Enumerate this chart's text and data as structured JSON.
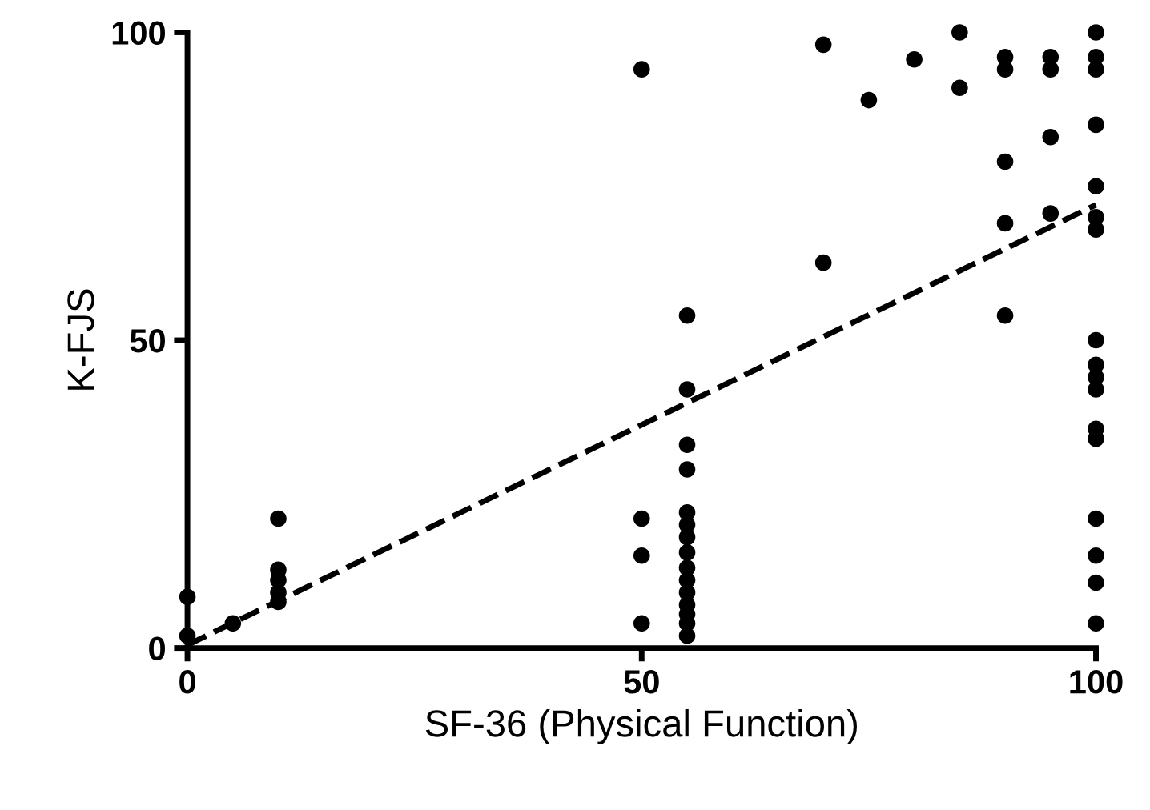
{
  "chart_data": {
    "type": "scatter",
    "xlabel": "SF-36 (Physical Function)",
    "ylabel": "K-FJS",
    "xlim": [
      0,
      100
    ],
    "ylim": [
      0,
      100
    ],
    "xticks": [
      0,
      50,
      100
    ],
    "yticks": [
      0,
      50,
      100
    ],
    "grid": false,
    "legend": false,
    "series": [
      {
        "color": "#000000",
        "marker": "circle",
        "x": [
          0,
          0,
          5,
          10,
          10,
          10,
          10,
          10,
          50,
          50,
          50,
          50,
          55,
          55,
          55,
          55,
          55,
          55,
          55,
          55,
          55,
          55,
          55,
          55,
          55,
          55,
          55,
          70,
          70,
          75,
          80,
          85,
          85,
          90,
          90,
          90,
          90,
          90,
          95,
          95,
          95,
          95,
          100,
          100,
          100,
          100,
          100,
          100,
          100,
          100,
          100,
          100,
          100,
          100,
          100,
          100,
          100,
          100,
          100
        ],
        "values": [
          8.3,
          2,
          4,
          21,
          12.7,
          11,
          9,
          7.5,
          94,
          21,
          15,
          4,
          54,
          42,
          33,
          29,
          22,
          20,
          18,
          15.5,
          13,
          11,
          9,
          7,
          5.5,
          4,
          2,
          98,
          62.6,
          89,
          95.6,
          100,
          91,
          96,
          94,
          79,
          69,
          54,
          96,
          94,
          83,
          70.6,
          100,
          96,
          94,
          85,
          75,
          70,
          68,
          50,
          46,
          44,
          42,
          35.6,
          34,
          21,
          15,
          10.6,
          4
        ]
      },
      {
        "type": "line",
        "color": "#000000",
        "line_style": "dashed",
        "marker": "none",
        "x": [
          0,
          100
        ],
        "values": [
          0.5,
          72
        ]
      }
    ]
  }
}
